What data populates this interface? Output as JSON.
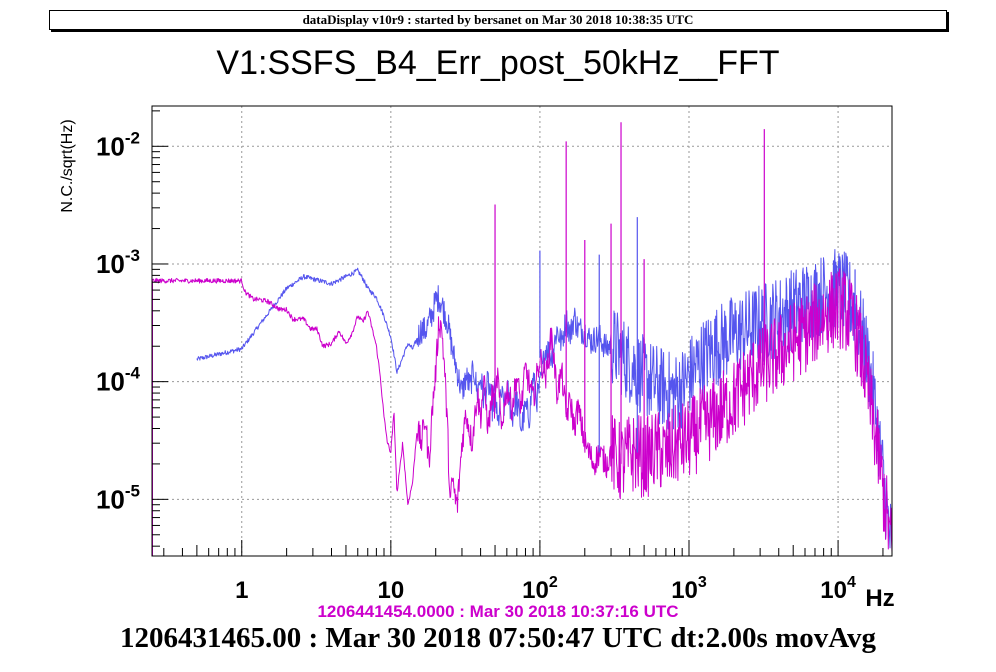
{
  "banner": "dataDisplay v10r9 : started by bersanet on Mar 30 2018 10:38:35 UTC",
  "footer": {
    "reference": "1206441454.0000 : Mar 30 2018 10:37:16 UTC",
    "main": "1206431465.00 : Mar 30 2018 07:50:47 UTC dt:2.00s movAvg"
  },
  "chart_data": {
    "type": "line",
    "title": "V1:SSFS_B4_Err_post_50kHz__FFT",
    "xlabel": "Hz",
    "ylabel": "N.C./sqrt(Hz)",
    "xscale": "log",
    "yscale": "log",
    "xlim": [
      0.25,
      23000
    ],
    "ylim": [
      3.3e-06,
      0.022
    ],
    "grid": true,
    "x_ticks": [
      {
        "value": 1,
        "label": "1"
      },
      {
        "value": 10,
        "label": "10"
      },
      {
        "value": 100,
        "base": "10",
        "exp": "2"
      },
      {
        "value": 1000,
        "base": "10",
        "exp": "3"
      },
      {
        "value": 10000,
        "base": "10",
        "exp": "4"
      }
    ],
    "y_ticks": [
      {
        "value": 1e-05,
        "base": "10",
        "exp": "-5"
      },
      {
        "value": 0.0001,
        "base": "10",
        "exp": "-4"
      },
      {
        "value": 0.001,
        "base": "10",
        "exp": "-3"
      },
      {
        "value": 0.01,
        "base": "10",
        "exp": "-2"
      }
    ],
    "series": [
      {
        "color": "#5555ee",
        "x": [
          0.5,
          1,
          1.5,
          2,
          2.6,
          3.2,
          4,
          5,
          6,
          6.5,
          7,
          8,
          9,
          10,
          10.5,
          11,
          12,
          13,
          14,
          15,
          16,
          17,
          18,
          19,
          20,
          21,
          22,
          24,
          26,
          28,
          30,
          32,
          34,
          36,
          38,
          40,
          42,
          45,
          48,
          50,
          52,
          55,
          58,
          60,
          65,
          70,
          75,
          80,
          85,
          90,
          95,
          100,
          105,
          110,
          120,
          130,
          140,
          150,
          160,
          170,
          180,
          200,
          220,
          250,
          280,
          300,
          350,
          400,
          450,
          500,
          600,
          700,
          800,
          900,
          1000,
          1200,
          1500,
          2000,
          2500,
          3000,
          4000,
          5000,
          6000,
          7000,
          8000,
          9000,
          10000,
          11000,
          12000,
          13000,
          14000,
          15000,
          16000,
          17000,
          18000,
          19000,
          20000,
          21000,
          22000,
          23000
        ],
        "y": [
          0.000155,
          0.00019,
          0.00038,
          0.00062,
          0.00078,
          0.00073,
          0.00068,
          0.00078,
          0.00088,
          0.00075,
          0.00062,
          0.00052,
          0.00036,
          0.00024,
          0.00017,
          0.00012,
          0.00016,
          0.00021,
          0.00019,
          0.00023,
          0.00028,
          0.00027,
          0.00032,
          0.00038,
          0.00049,
          0.00052,
          0.00046,
          0.00032,
          0.00018,
          0.00012,
          8e-05,
          0.00011,
          9e-05,
          0.00013,
          8e-05,
          0.00011,
          7e-05,
          0.0001,
          6e-05,
          9e-05,
          4e-05,
          8e-05,
          6e-05,
          9e-05,
          5e-05,
          7e-05,
          4e-05,
          6e-05,
          5e-05,
          0.00011,
          7e-05,
          9e-05,
          0.00014,
          0.0002,
          0.00016,
          0.00028,
          0.00021,
          0.00034,
          0.00025,
          0.00036,
          0.00028,
          0.00027,
          0.00022,
          0.00024,
          0.00019,
          0.00021,
          0.00017,
          0.000145,
          0.000125,
          0.00011,
          9.5e-05,
          8.5e-05,
          8e-05,
          9e-05,
          0.00011,
          0.00015,
          0.0002,
          0.00025,
          0.00028,
          0.00031,
          0.00036,
          0.00042,
          0.00048,
          0.00052,
          0.00056,
          0.0006,
          0.00062,
          0.00058,
          0.0005,
          0.0004,
          0.0003,
          0.00021,
          0.00014,
          9e-05,
          5e-05,
          2.8e-05,
          1.6e-05,
          9e-06,
          5.5e-06,
          4e-06
        ]
      },
      {
        "color": "#cc00cc",
        "x": [
          0.25,
          1,
          1.05,
          1.2,
          1.3,
          1.5,
          1.8,
          2,
          2.2,
          2.6,
          2.9,
          3.2,
          3.5,
          4,
          4.5,
          5,
          5.5,
          6,
          6.5,
          7,
          7.5,
          8,
          8.5,
          9,
          9.5,
          10,
          10.5,
          11,
          12,
          13,
          14,
          15,
          16,
          17,
          18,
          19,
          20,
          21,
          22,
          23,
          24,
          25,
          26,
          27,
          28,
          30,
          32,
          35,
          38,
          40,
          42,
          45,
          48,
          50,
          52,
          55,
          60,
          65,
          70,
          75,
          80,
          90,
          100,
          110,
          120,
          130,
          140,
          150,
          160,
          170,
          180,
          200,
          230,
          250,
          280,
          300,
          350,
          400,
          450,
          500,
          600,
          700,
          800,
          1000,
          1200,
          1500,
          2000,
          2500,
          3000,
          4000,
          5000,
          6000,
          7000,
          8000,
          9000,
          10000,
          11000,
          12000,
          13000,
          14000,
          15000,
          16000,
          17000,
          18000,
          19000,
          20000,
          21000,
          22000,
          23000
        ],
        "y": [
          0.00072,
          0.00072,
          0.00058,
          0.0005,
          0.0005,
          0.00048,
          0.00041,
          0.00041,
          0.00034,
          0.00034,
          0.00028,
          0.00028,
          0.0002,
          0.00021,
          0.00027,
          0.00021,
          0.00026,
          0.00036,
          0.00032,
          0.0004,
          0.00028,
          0.0002,
          0.00011,
          5e-05,
          3e-05,
          2.5e-05,
          5.5e-05,
          1.1e-05,
          3e-05,
          9e-06,
          1.4e-05,
          4e-05,
          3e-05,
          5e-05,
          2e-05,
          6e-05,
          0.00012,
          0.00033,
          0.00028,
          0.00012,
          4e-05,
          9e-06,
          1.5e-05,
          1e-05,
          9e-06,
          3e-05,
          5.5e-05,
          3e-05,
          8e-05,
          5e-05,
          0.0001,
          4e-05,
          8e-05,
          6e-05,
          0.00012,
          4e-05,
          9e-05,
          6e-05,
          0.00011,
          6e-05,
          0.00013,
          7e-05,
          0.00016,
          0.00011,
          0.00026,
          8e-05,
          0.00012,
          5e-05,
          7e-05,
          4e-05,
          6e-05,
          3e-05,
          2e-05,
          2.5e-05,
          2e-05,
          2.5e-05,
          2e-05,
          2.4e-05,
          2.5e-05,
          2.2e-05,
          2.6e-05,
          2.4e-05,
          2.8e-05,
          3.2e-05,
          4e-05,
          5e-05,
          7e-05,
          0.0001,
          0.00013,
          0.00017,
          0.00022,
          0.00026,
          0.00031,
          0.00036,
          0.0004,
          0.00043,
          0.00041,
          0.00035,
          0.00028,
          0.0002,
          0.00013,
          8e-05,
          5e-05,
          3.2e-05,
          2e-05,
          1.2e-05,
          8e-06,
          5.5e-06,
          3.6e-06
        ]
      }
    ],
    "spikes": [
      {
        "x": 50,
        "y": 0.0032
      },
      {
        "x": 100,
        "y": 0.0013
      },
      {
        "x": 150,
        "y": 0.011
      },
      {
        "x": 200,
        "y": 0.0016
      },
      {
        "x": 250,
        "y": 0.0012
      },
      {
        "x": 300,
        "y": 0.0022
      },
      {
        "x": 350,
        "y": 0.016
      },
      {
        "x": 450,
        "y": 0.0025
      },
      {
        "x": 500,
        "y": 0.0011
      },
      {
        "x": 3200,
        "y": 0.014
      },
      {
        "x": 13000,
        "y": 0.0009
      }
    ]
  }
}
